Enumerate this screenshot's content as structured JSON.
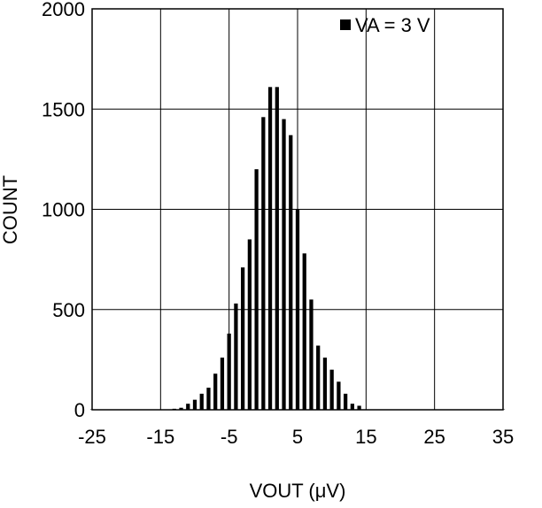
{
  "chart_data": {
    "type": "bar",
    "title": "",
    "xlabel": "VOUT (μV)",
    "ylabel": "COUNT",
    "xlim": [
      -25,
      35
    ],
    "ylim": [
      0,
      2000
    ],
    "x_ticks": [
      -25,
      -15,
      -5,
      5,
      15,
      25,
      35
    ],
    "y_ticks": [
      0,
      500,
      1000,
      1500,
      2000
    ],
    "x_tick_labels": [
      "-25",
      "-15",
      "-5",
      "5",
      "15",
      "25",
      "35"
    ],
    "y_tick_labels": [
      "0",
      "500",
      "1000",
      "1500",
      "2000"
    ],
    "grid": true,
    "legend_position": "top-right",
    "series": [
      {
        "name": "VA = 3 V",
        "color": "#000000",
        "x": [
          -25,
          -24,
          -23,
          -22,
          -21,
          -20,
          -19,
          -18,
          -17,
          -16,
          -15,
          -14,
          -13,
          -12,
          -11,
          -10,
          -9,
          -8,
          -7,
          -6,
          -5,
          -4,
          -3,
          -2,
          -1,
          0,
          1,
          2,
          3,
          4,
          5,
          6,
          7,
          8,
          9,
          10,
          11,
          12,
          13,
          14,
          15,
          16,
          17,
          18,
          19,
          20,
          21,
          22,
          23,
          24,
          25,
          26,
          27,
          28,
          29,
          30,
          31,
          32,
          33,
          34,
          35
        ],
        "values": [
          2,
          2,
          2,
          2,
          2,
          2,
          2,
          2,
          2,
          2,
          2,
          2,
          5,
          10,
          30,
          50,
          80,
          110,
          180,
          260,
          380,
          530,
          710,
          850,
          1200,
          1460,
          1610,
          1610,
          1450,
          1370,
          1000,
          780,
          550,
          320,
          260,
          200,
          140,
          80,
          30,
          20,
          2,
          2,
          2,
          2,
          2,
          2,
          2,
          2,
          2,
          2,
          2,
          2,
          2,
          2,
          2,
          2,
          2,
          2,
          2,
          2,
          2
        ]
      }
    ]
  }
}
